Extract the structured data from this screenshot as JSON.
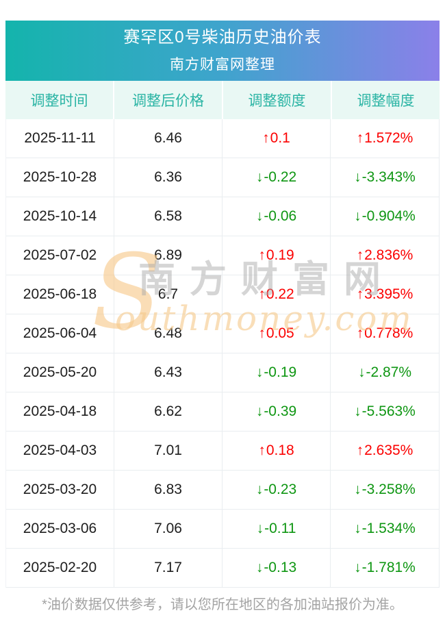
{
  "banner": {
    "title": "赛罕区0号柴油历史油价表",
    "subtitle": "南方财富网整理",
    "gradient_from": "#14b4ac",
    "gradient_mid": "#3fa4cd",
    "gradient_to": "#8b80e9"
  },
  "table": {
    "headers": [
      "调整时间",
      "调整后价格",
      "调整额度",
      "调整幅度"
    ],
    "header_bg": "#e9f8f4",
    "header_text_color": "#2ab4a4",
    "up_color": "#fb0000",
    "down_color": "#0e9612",
    "up_arrow": "↑",
    "down_arrow": "↓",
    "rows": [
      {
        "date": "2025-11-11",
        "price": "6.46",
        "change": "0.1",
        "pct": "1.572%",
        "dir": "up"
      },
      {
        "date": "2025-10-28",
        "price": "6.36",
        "change": "-0.22",
        "pct": "-3.343%",
        "dir": "down"
      },
      {
        "date": "2025-10-14",
        "price": "6.58",
        "change": "-0.06",
        "pct": "-0.904%",
        "dir": "down"
      },
      {
        "date": "2025-07-02",
        "price": "6.89",
        "change": "0.19",
        "pct": "2.836%",
        "dir": "up"
      },
      {
        "date": "2025-06-18",
        "price": "6.7",
        "change": "0.22",
        "pct": "3.395%",
        "dir": "up"
      },
      {
        "date": "2025-06-04",
        "price": "6.48",
        "change": "0.05",
        "pct": "0.778%",
        "dir": "up"
      },
      {
        "date": "2025-05-20",
        "price": "6.43",
        "change": "-0.19",
        "pct": "-2.87%",
        "dir": "down"
      },
      {
        "date": "2025-04-18",
        "price": "6.62",
        "change": "-0.39",
        "pct": "-5.563%",
        "dir": "down"
      },
      {
        "date": "2025-04-03",
        "price": "7.01",
        "change": "0.18",
        "pct": "2.635%",
        "dir": "up"
      },
      {
        "date": "2025-03-20",
        "price": "6.83",
        "change": "-0.23",
        "pct": "-3.258%",
        "dir": "down"
      },
      {
        "date": "2025-03-06",
        "price": "7.06",
        "change": "-0.11",
        "pct": "-1.534%",
        "dir": "down"
      },
      {
        "date": "2025-02-20",
        "price": "7.17",
        "change": "-0.13",
        "pct": "-1.781%",
        "dir": "down"
      }
    ]
  },
  "watermark": {
    "big_letter": "S",
    "cn": "南方财富网",
    "en": "outhmoney.com"
  },
  "footer": {
    "note": "*油价数据仅供参考，请以您所在地区的各加油站报价为准。"
  },
  "chart_data": {
    "type": "table",
    "title": "赛罕区0号柴油历史油价表",
    "subtitle": "南方财富网整理",
    "columns": [
      "调整时间",
      "调整后价格",
      "调整额度",
      "调整幅度"
    ],
    "rows": [
      [
        "2025-11-11",
        "6.46",
        "↑0.1",
        "↑1.572%"
      ],
      [
        "2025-10-28",
        "6.36",
        "↓-0.22",
        "↓-3.343%"
      ],
      [
        "2025-10-14",
        "6.58",
        "↓-0.06",
        "↓-0.904%"
      ],
      [
        "2025-07-02",
        "6.89",
        "↑0.19",
        "↑2.836%"
      ],
      [
        "2025-06-18",
        "6.7",
        "↑0.22",
        "↑3.395%"
      ],
      [
        "2025-06-04",
        "6.48",
        "↑0.05",
        "↑0.778%"
      ],
      [
        "2025-05-20",
        "6.43",
        "↓-0.19",
        "↓-2.87%"
      ],
      [
        "2025-04-18",
        "6.62",
        "↓-0.39",
        "↓-5.563%"
      ],
      [
        "2025-04-03",
        "7.01",
        "↑0.18",
        "↑2.635%"
      ],
      [
        "2025-03-20",
        "6.83",
        "↓-0.23",
        "↓-3.258%"
      ],
      [
        "2025-03-06",
        "7.06",
        "↓-0.11",
        "↓-1.534%"
      ],
      [
        "2025-02-20",
        "7.17",
        "↓-0.13",
        "↓-1.781%"
      ]
    ],
    "up_color": "#fb0000",
    "down_color": "#0e9612",
    "note": "*油价数据仅供参考，请以您所在地区的各加油站报价为准。"
  }
}
